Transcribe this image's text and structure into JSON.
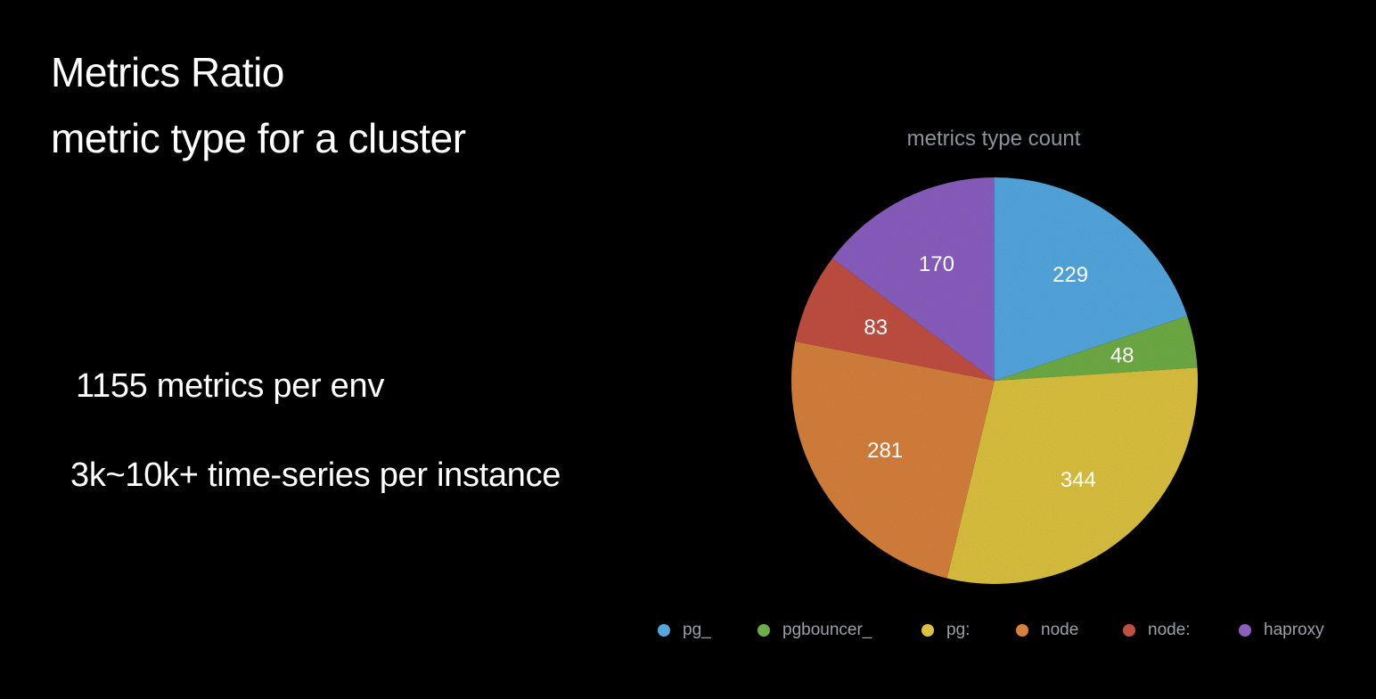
{
  "slide": {
    "title_line1": "Metrics Ratio",
    "title_line2": "metric type for a cluster",
    "stat1": "1155 metrics per env",
    "stat2": "3k~10k+ time-series per instance"
  },
  "chart_data": {
    "type": "pie",
    "title": "metrics type count",
    "legend_position": "bottom",
    "slices": [
      {
        "label": "pg_",
        "value": 229,
        "color": "#54a8e0"
      },
      {
        "label": "pgbouncer_",
        "value": 48,
        "color": "#6fad45"
      },
      {
        "label": "pg:",
        "value": 344,
        "color": "#dcc23f"
      },
      {
        "label": "node",
        "value": 281,
        "color": "#d7813c"
      },
      {
        "label": "node:",
        "value": 83,
        "color": "#c24f42"
      },
      {
        "label": "haproxy",
        "value": 170,
        "color": "#8a5fc0"
      }
    ]
  }
}
